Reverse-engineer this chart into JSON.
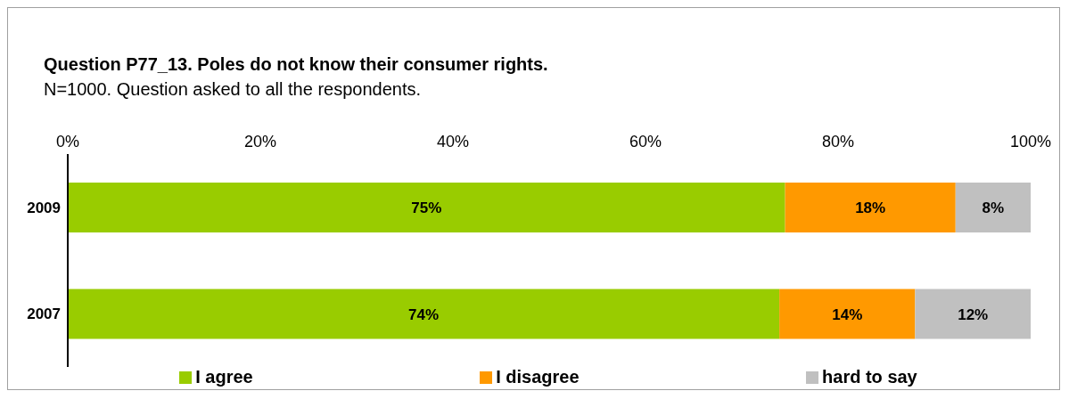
{
  "chart_data": {
    "type": "bar",
    "orientation": "horizontal",
    "stacked": true,
    "title": "Question P77_13. Poles do not know their consumer rights.",
    "subtitle": "N=1000. Question asked to all the respondents.",
    "categories": [
      "2009",
      "2007"
    ],
    "series": [
      {
        "name": "I agree",
        "color": "#99cc00",
        "values": [
          74.5,
          73.9
        ],
        "value_labels": [
          "75%",
          "74%"
        ]
      },
      {
        "name": "I disagree",
        "color": "#ff9900",
        "values": [
          17.7,
          14.1
        ],
        "value_labels": [
          "18%",
          "14%"
        ]
      },
      {
        "name": "hard to say",
        "color": "#c0c0c0",
        "values": [
          7.8,
          12.0
        ],
        "value_labels": [
          "8%",
          "12%"
        ]
      }
    ],
    "xlim": [
      0,
      100
    ],
    "xticks": [
      {
        "value": 0,
        "label": "0%"
      },
      {
        "value": 20,
        "label": "20%"
      },
      {
        "value": 40,
        "label": "40%"
      },
      {
        "value": 60,
        "label": "60%"
      },
      {
        "value": 80,
        "label": "80%"
      },
      {
        "value": 100,
        "label": "100%"
      }
    ],
    "grid": false,
    "legend": "bottom"
  }
}
